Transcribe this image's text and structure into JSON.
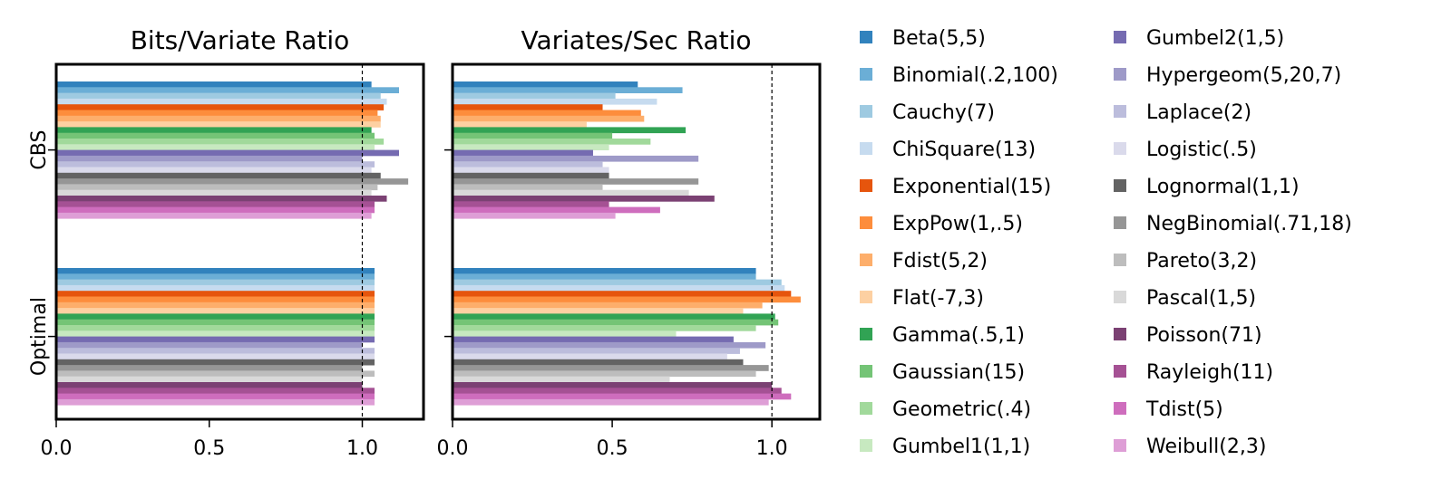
{
  "chart_data": {
    "type": "bar",
    "orientation": "horizontal",
    "groups": [
      "CBS",
      "Optimal"
    ],
    "reference_line": 1.0,
    "panels": [
      {
        "title": "Bits/Variate Ratio",
        "xlim": [
          0,
          1.2
        ],
        "xticks": [
          "0.0",
          "0.5",
          "1.0"
        ]
      },
      {
        "title": "Variates/Sec Ratio",
        "xlim": [
          0,
          1.15
        ],
        "xticks": [
          "0.0",
          "0.5",
          "1.0"
        ]
      }
    ],
    "legend_position": "right",
    "series": [
      {
        "name": "Beta(5,5)",
        "color": "#3182bd",
        "bits": [
          1.03,
          1.04
        ],
        "speed": [
          0.58,
          0.95
        ]
      },
      {
        "name": "Binomial(.2,100)",
        "color": "#6baed6",
        "bits": [
          1.12,
          1.04
        ],
        "speed": [
          0.72,
          0.95
        ]
      },
      {
        "name": "Cauchy(7)",
        "color": "#9ecae1",
        "bits": [
          1.06,
          1.04
        ],
        "speed": [
          0.51,
          1.03
        ]
      },
      {
        "name": "ChiSquare(13)",
        "color": "#c6dbef",
        "bits": [
          1.08,
          1.04
        ],
        "speed": [
          0.64,
          1.04
        ]
      },
      {
        "name": "Exponential(15)",
        "color": "#e6550d",
        "bits": [
          1.07,
          1.04
        ],
        "speed": [
          0.47,
          1.06
        ]
      },
      {
        "name": "ExpPow(1,.5)",
        "color": "#fd8d3c",
        "bits": [
          1.05,
          1.04
        ],
        "speed": [
          0.59,
          1.09
        ]
      },
      {
        "name": "Fdist(5,2)",
        "color": "#fdae6b",
        "bits": [
          1.06,
          1.04
        ],
        "speed": [
          0.6,
          0.97
        ]
      },
      {
        "name": "Flat(-7,3)",
        "color": "#fdd0a2",
        "bits": [
          1.06,
          1.04
        ],
        "speed": [
          0.42,
          0.91
        ]
      },
      {
        "name": "Gamma(.5,1)",
        "color": "#31a354",
        "bits": [
          1.03,
          1.04
        ],
        "speed": [
          0.73,
          1.01
        ]
      },
      {
        "name": "Gaussian(15)",
        "color": "#74c476",
        "bits": [
          1.04,
          1.04
        ],
        "speed": [
          0.5,
          1.02
        ]
      },
      {
        "name": "Geometric(.4)",
        "color": "#a1d99b",
        "bits": [
          1.07,
          1.04
        ],
        "speed": [
          0.62,
          0.95
        ]
      },
      {
        "name": "Gumbel1(1,1)",
        "color": "#c7e9c0",
        "bits": [
          1.04,
          1.04
        ],
        "speed": [
          0.49,
          0.7
        ]
      },
      {
        "name": "Gumbel2(1,5)",
        "color": "#756bb1",
        "bits": [
          1.12,
          1.04
        ],
        "speed": [
          0.44,
          0.88
        ]
      },
      {
        "name": "Hypergeom(5,20,7)",
        "color": "#9e9ac8",
        "bits": [
          1.0,
          1.0
        ],
        "speed": [
          0.77,
          0.98
        ]
      },
      {
        "name": "Laplace(2)",
        "color": "#bcbddc",
        "bits": [
          1.04,
          1.04
        ],
        "speed": [
          0.47,
          0.9
        ]
      },
      {
        "name": "Logistic(.5)",
        "color": "#dadaeb",
        "bits": [
          1.03,
          1.04
        ],
        "speed": [
          0.49,
          0.86
        ]
      },
      {
        "name": "Lognormal(1,1)",
        "color": "#636363",
        "bits": [
          1.06,
          1.04
        ],
        "speed": [
          0.49,
          0.91
        ]
      },
      {
        "name": "NegBinomial(.71,18)",
        "color": "#969696",
        "bits": [
          1.15,
          1.0
        ],
        "speed": [
          0.77,
          0.99
        ]
      },
      {
        "name": "Pareto(3,2)",
        "color": "#bdbdbd",
        "bits": [
          1.05,
          1.04
        ],
        "speed": [
          0.47,
          0.95
        ]
      },
      {
        "name": "Pascal(1,5)",
        "color": "#d9d9d9",
        "bits": [
          1.03,
          1.0
        ],
        "speed": [
          0.74,
          0.68
        ]
      },
      {
        "name": "Poisson(71)",
        "color": "#7b4173",
        "bits": [
          1.08,
          1.0
        ],
        "speed": [
          0.82,
          1.0
        ]
      },
      {
        "name": "Rayleigh(11)",
        "color": "#a55194",
        "bits": [
          1.04,
          1.04
        ],
        "speed": [
          0.49,
          1.03
        ]
      },
      {
        "name": "Tdist(5)",
        "color": "#ce6dbd",
        "bits": [
          1.04,
          1.04
        ],
        "speed": [
          0.65,
          1.06
        ]
      },
      {
        "name": "Weibull(2,3)",
        "color": "#de9ed6",
        "bits": [
          1.03,
          1.04
        ],
        "speed": [
          0.51,
          0.99
        ]
      }
    ]
  }
}
